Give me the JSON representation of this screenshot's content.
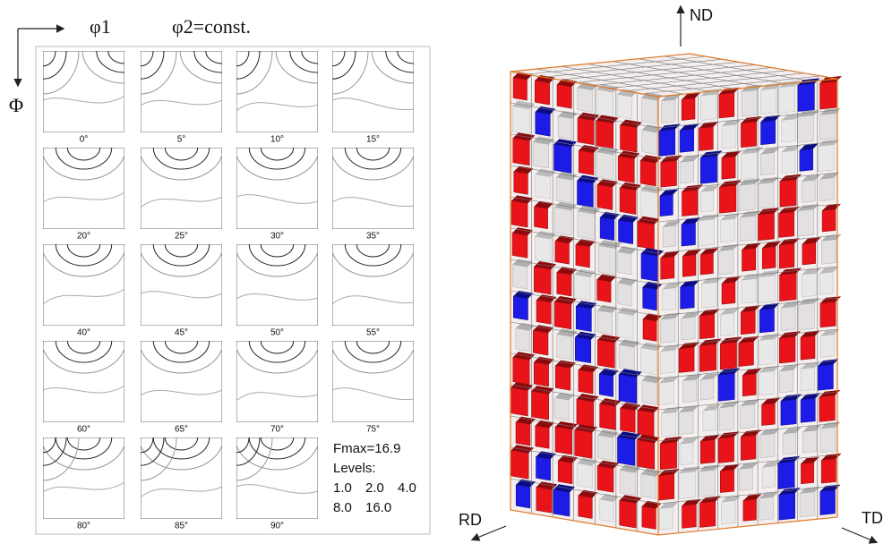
{
  "header": {
    "phi1": "φ1",
    "phi2": "φ2=const.",
    "Phi": "Φ"
  },
  "sections": {
    "labels": [
      "0°",
      "5°",
      "10°",
      "15°",
      "20°",
      "25°",
      "30°",
      "35°",
      "40°",
      "45°",
      "50°",
      "55°",
      "60°",
      "65°",
      "70°",
      "75°",
      "80°",
      "85°",
      "90°"
    ]
  },
  "legend": {
    "fmax": "Fmax=16.9",
    "levels_title": "Levels:",
    "levels": [
      "1.0",
      "2.0",
      "4.0",
      "8.0",
      "16.0"
    ]
  },
  "model": {
    "nd": "ND",
    "rd": "RD",
    "td": "TD"
  }
}
